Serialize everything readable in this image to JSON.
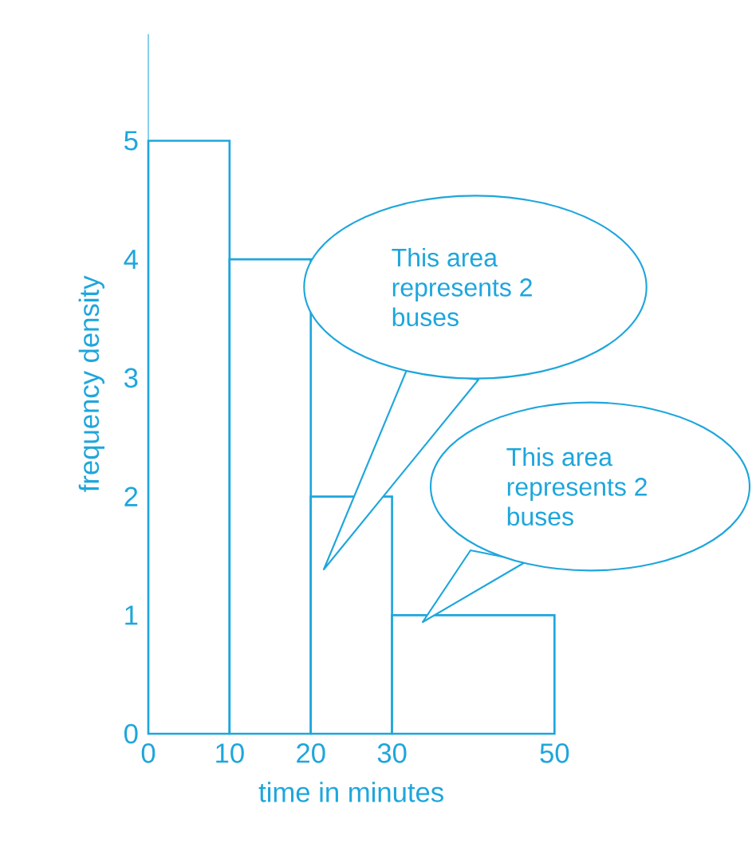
{
  "chart_data": {
    "type": "histogram",
    "xlabel": "time in minutes",
    "ylabel": "frequency density",
    "bins": [
      0,
      10,
      20,
      30,
      50
    ],
    "values": [
      5,
      4,
      2,
      1
    ],
    "color": "#1ea6dc",
    "xlim": [
      0,
      50
    ],
    "ylim": [
      0,
      5.9
    ],
    "xticks": [
      0,
      10,
      20,
      30,
      50
    ],
    "yticks": [
      0,
      1,
      2,
      3,
      4,
      5
    ],
    "annotations": [
      "This area represents 2 buses",
      "This area represents 2 buses"
    ]
  }
}
